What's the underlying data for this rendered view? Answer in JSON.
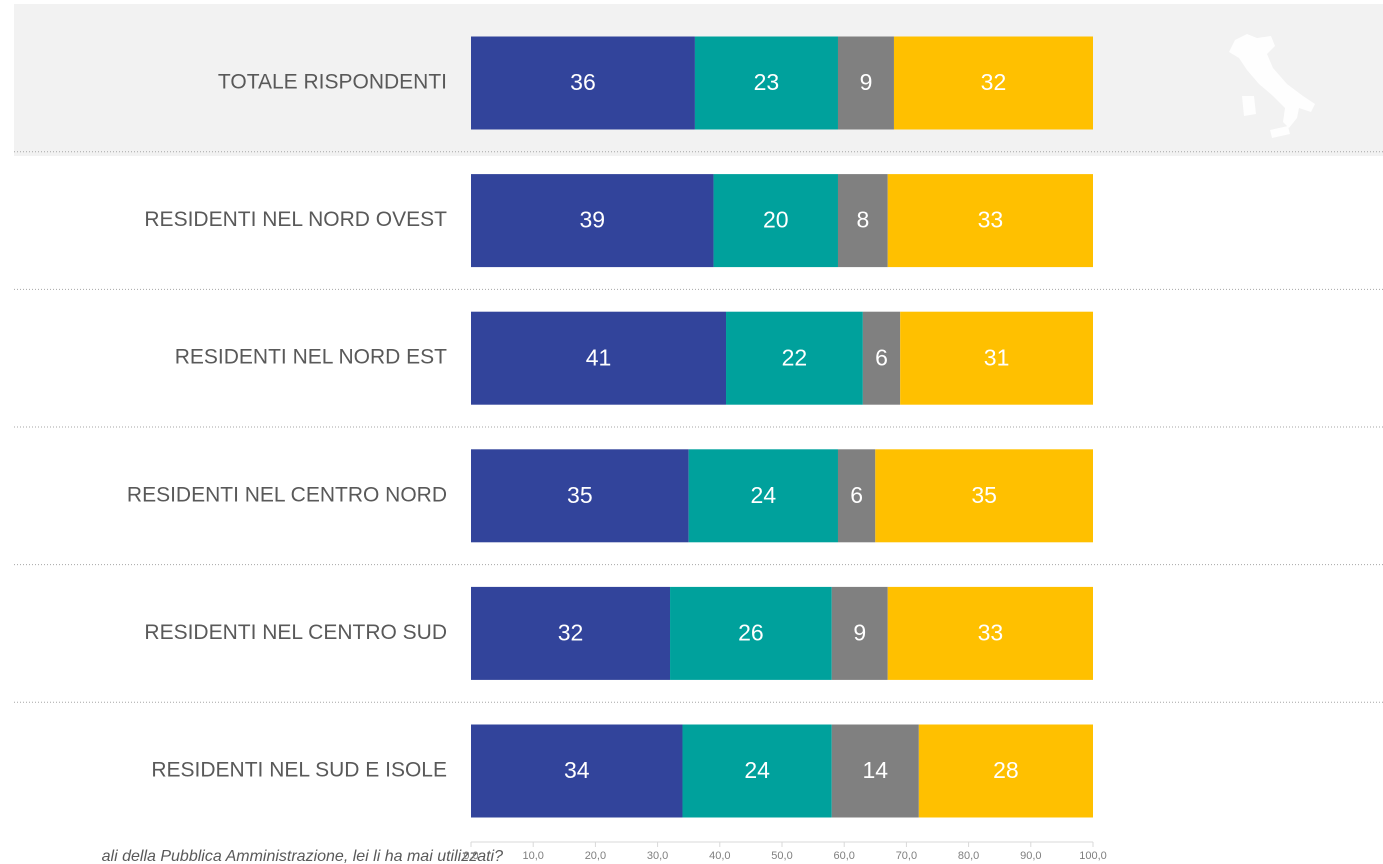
{
  "chart_data": {
    "type": "stacked_hbar",
    "categories": [
      "TOTALE RISPONDENTI",
      "RESIDENTI NEL NORD OVEST",
      "RESIDENTI NEL NORD EST",
      "RESIDENTI NEL CENTRO NORD",
      "RESIDENTI NEL CENTRO SUD",
      "RESIDENTI NEL SUD E ISOLE"
    ],
    "series": [
      {
        "color": "#32449b",
        "values": [
          36,
          39,
          41,
          35,
          32,
          34
        ]
      },
      {
        "color": "#00a19c",
        "values": [
          23,
          20,
          22,
          24,
          26,
          24
        ]
      },
      {
        "color": "#808080",
        "values": [
          9,
          8,
          6,
          6,
          9,
          14
        ]
      },
      {
        "color": "#ffc000",
        "values": [
          32,
          33,
          31,
          35,
          33,
          28
        ]
      }
    ],
    "xlim": [
      0,
      100
    ],
    "xticks": [
      {
        "value": 0,
        "label": "0,0"
      },
      {
        "value": 10,
        "label": "10,0"
      },
      {
        "value": 20,
        "label": "20,0"
      },
      {
        "value": 30,
        "label": "30,0"
      },
      {
        "value": 40,
        "label": "40,0"
      },
      {
        "value": 50,
        "label": "50,0"
      },
      {
        "value": 60,
        "label": "60,0"
      },
      {
        "value": 70,
        "label": "70,0"
      },
      {
        "value": 80,
        "label": "80,0"
      },
      {
        "value": 90,
        "label": "90,0"
      },
      {
        "value": 100,
        "label": "100,0"
      }
    ],
    "annotation": "ali della Pubblica Amministrazione, lei li ha mai utilizzati?"
  }
}
